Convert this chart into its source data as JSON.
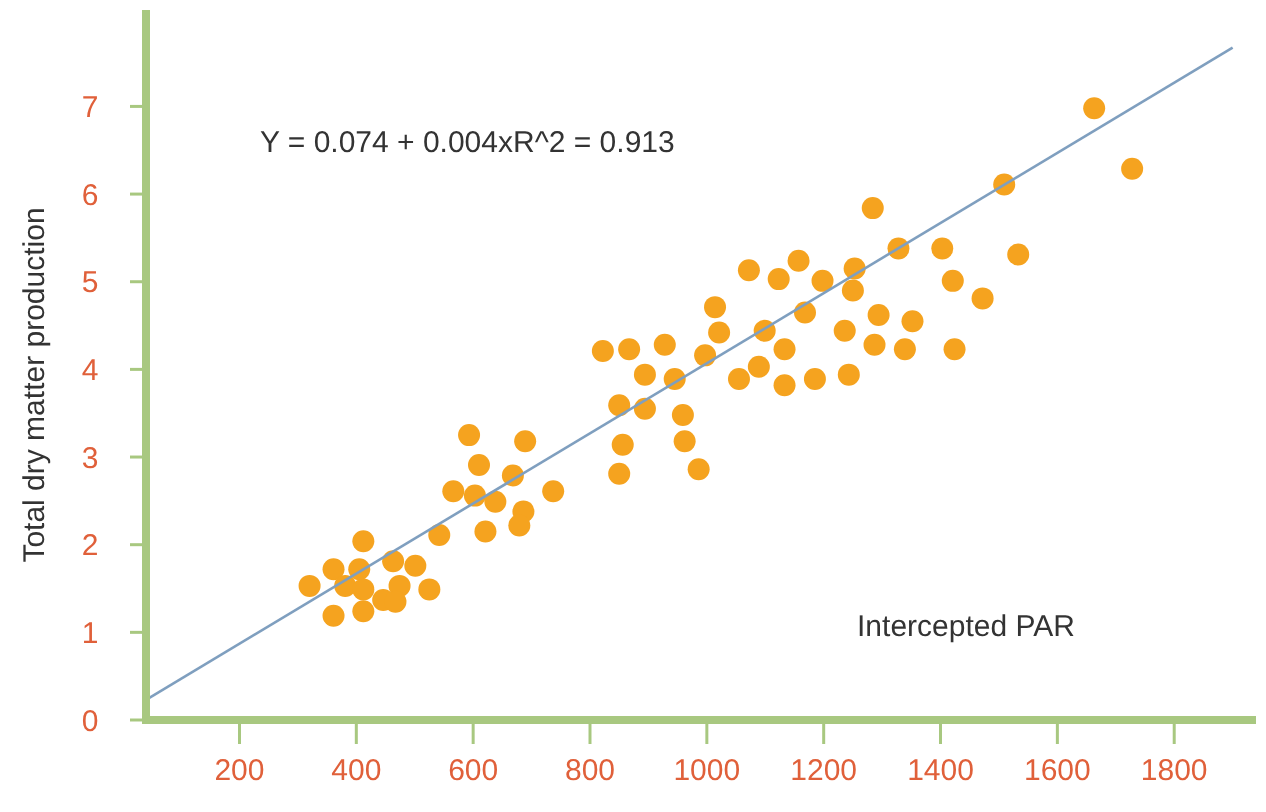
{
  "chart_data": {
    "type": "scatter",
    "xlabel": "Intercepted PAR",
    "ylabel": "Total dry matter production",
    "annotations": [
      "Y = 0.074 + 0.004xR^2 = 0.913"
    ],
    "xlim": [
      40,
      1940
    ],
    "ylim": [
      0,
      8.1
    ],
    "xticks": [
      200,
      400,
      600,
      800,
      1000,
      1200,
      1400,
      1600,
      1800
    ],
    "yticks": [
      0,
      1,
      2,
      3,
      4,
      5,
      6,
      7
    ],
    "grid": false,
    "series": [
      {
        "marker": "circle",
        "color": "#f5a31f",
        "x": [
          320,
          361,
          412,
          405,
          381,
          412,
          463,
          501,
          525,
          474,
          446,
          412,
          361,
          467,
          593,
          689,
          610,
          668,
          566,
          603,
          638,
          686,
          737,
          542,
          621,
          679,
          1284,
          1509,
          1728,
          1663,
          1328,
          1403,
          1533,
          1072,
          1123,
          1157,
          1198,
          1253,
          1250,
          1421,
          1472,
          1014,
          1021,
          1099,
          1168,
          1236,
          1294,
          1352,
          1133,
          1287,
          1339,
          1424,
          822,
          867,
          928,
          997,
          894,
          945,
          1055,
          1089,
          1133,
          1185,
          1243,
          850,
          894,
          959,
          856,
          962,
          850,
          986
        ],
        "values": [
          1.53,
          1.72,
          2.04,
          1.72,
          1.53,
          1.49,
          1.81,
          1.76,
          1.49,
          1.53,
          1.37,
          1.24,
          1.19,
          1.35,
          3.25,
          3.18,
          2.91,
          2.79,
          2.61,
          2.56,
          2.49,
          2.38,
          2.61,
          2.11,
          2.15,
          2.22,
          5.84,
          6.11,
          6.29,
          6.98,
          5.38,
          5.38,
          5.31,
          5.13,
          5.03,
          5.24,
          5.01,
          5.15,
          4.9,
          5.01,
          4.81,
          4.71,
          4.42,
          4.44,
          4.65,
          4.44,
          4.62,
          4.55,
          4.23,
          4.28,
          4.23,
          4.23,
          4.21,
          4.23,
          4.28,
          4.16,
          3.94,
          3.89,
          3.89,
          4.03,
          3.82,
          3.89,
          3.94,
          3.59,
          3.55,
          3.48,
          3.14,
          3.18,
          2.81,
          2.86
        ]
      },
      {
        "type": "line",
        "color": "#7f9fbf",
        "line_style": "solid",
        "x": [
          40,
          1900
        ],
        "values": [
          0.23,
          7.67
        ]
      }
    ]
  }
}
